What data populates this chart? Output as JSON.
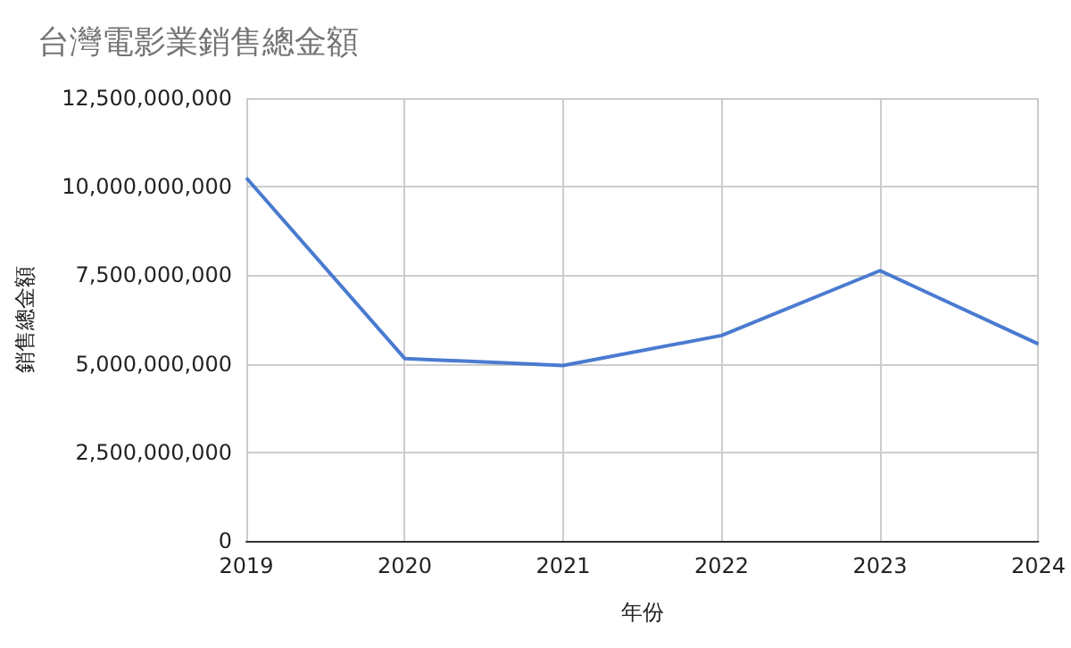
{
  "chart_data": {
    "type": "line",
    "title": "台灣電影業銷售總金額",
    "xlabel": "年份",
    "ylabel": "銷售總金額",
    "categories": [
      "2019",
      "2020",
      "2021",
      "2022",
      "2023",
      "2024"
    ],
    "series": [
      {
        "color": "#4a7bd0",
        "values": [
          10250000000,
          5150000000,
          4950000000,
          5800000000,
          7630000000,
          5560000000
        ]
      }
    ],
    "ylim": [
      0,
      12500000000
    ],
    "yticks": [
      0,
      {
        "value": 2500000000,
        "label": "2,500,000,000"
      },
      {
        "value": 5000000000,
        "label": "5,000,000,000"
      },
      {
        "value": 7500000000,
        "label": "7,500,000,000"
      },
      {
        "value": 10000000000,
        "label": "10,000,000,000"
      },
      {
        "value": 12500000000,
        "label": "12,500,000,000"
      }
    ],
    "grid": true,
    "marker": "none",
    "line_style": "solid"
  }
}
